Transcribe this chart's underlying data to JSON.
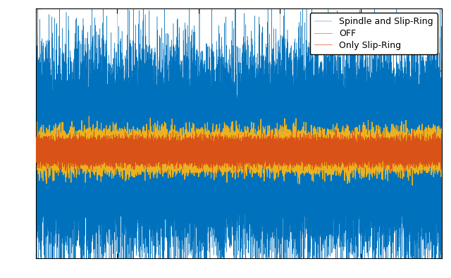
{
  "title": "",
  "xlabel": "",
  "ylabel": "",
  "legend_entries": [
    "Spindle and Slip-Ring",
    "Only Slip-Ring",
    "OFF"
  ],
  "colors": [
    "#0072BD",
    "#D95319",
    "#EDB120"
  ],
  "n_points": 50000,
  "blue_amplitude": 0.6,
  "orange_amplitude": 0.08,
  "yellow_amplitude": 0.12,
  "blue_spike_factor": 4.0,
  "n_blue_spikes": 5,
  "ylim": [
    -1.5,
    2.0
  ],
  "xlim": [
    0,
    50000
  ],
  "legend_loc": "upper right",
  "figsize": [
    6.4,
    3.94
  ],
  "dpi": 100,
  "linewidth_blue": 0.3,
  "linewidth_orange": 0.5,
  "linewidth_yellow": 0.8,
  "seed": 42,
  "background_color": "#FFFFFF",
  "matlab_style": true
}
